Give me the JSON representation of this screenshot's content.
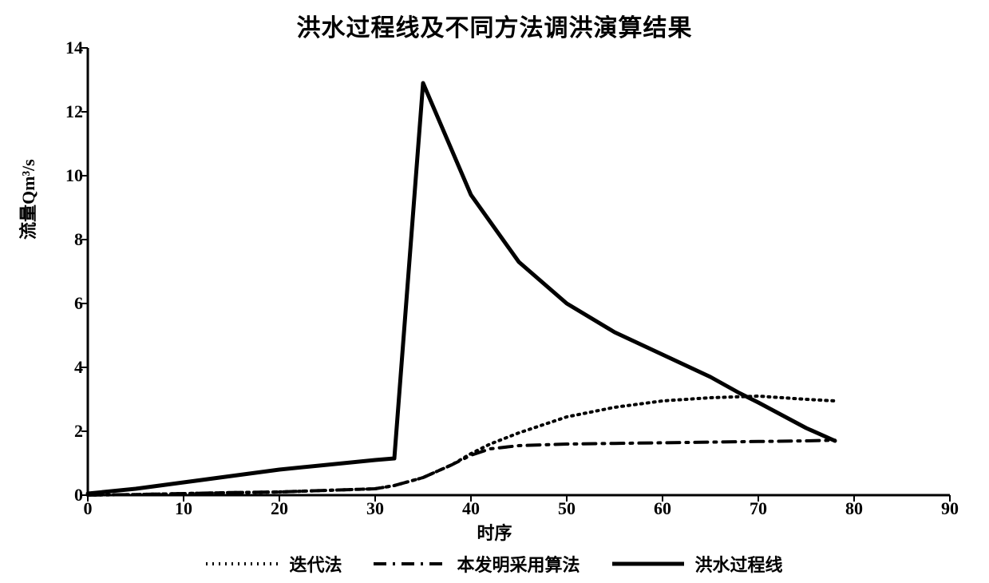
{
  "chart": {
    "type": "line",
    "title": "洪水过程线及不同方法调洪演算结果",
    "title_fontsize": 30,
    "x_axis_label": "时序",
    "y_axis_label": "流量Qm³/s",
    "label_fontsize": 22,
    "tick_fontsize": 22,
    "background_color": "#ffffff",
    "axis_color": "#000000",
    "axis_width": 3,
    "tick_length": 8,
    "xlim": [
      0,
      90
    ],
    "ylim": [
      0,
      14
    ],
    "xticks": [
      0,
      10,
      20,
      30,
      40,
      50,
      60,
      70,
      80,
      90
    ],
    "yticks": [
      0,
      2,
      4,
      6,
      8,
      10,
      12,
      14
    ],
    "series": [
      {
        "name": "迭代法",
        "legend_label": "迭代法",
        "style": "dotted",
        "color": "#000000",
        "line_width": 4,
        "dash": "2,6",
        "x": [
          0,
          5,
          10,
          15,
          20,
          25,
          30,
          32,
          35,
          38,
          40,
          42,
          45,
          48,
          50,
          55,
          60,
          65,
          70,
          75,
          78
        ],
        "y": [
          0,
          0.02,
          0.05,
          0.08,
          0.1,
          0.15,
          0.2,
          0.3,
          0.55,
          0.95,
          1.3,
          1.6,
          1.95,
          2.25,
          2.45,
          2.75,
          2.95,
          3.05,
          3.1,
          3.0,
          2.95
        ]
      },
      {
        "name": "本发明采用算法",
        "legend_label": "本发明采用算法",
        "style": "dash-dot",
        "color": "#000000",
        "line_width": 4,
        "dash": "16,8,3,8",
        "x": [
          0,
          5,
          10,
          15,
          20,
          25,
          30,
          32,
          35,
          38,
          40,
          42,
          45,
          50,
          55,
          60,
          65,
          70,
          75,
          78
        ],
        "y": [
          0,
          0.02,
          0.05,
          0.08,
          0.1,
          0.15,
          0.2,
          0.3,
          0.55,
          0.95,
          1.25,
          1.45,
          1.55,
          1.6,
          1.62,
          1.64,
          1.66,
          1.68,
          1.7,
          1.72
        ]
      },
      {
        "name": "洪水过程线",
        "legend_label": "洪水过程线",
        "style": "solid",
        "color": "#000000",
        "line_width": 5,
        "dash": "",
        "x": [
          0,
          5,
          10,
          15,
          20,
          25,
          30,
          32,
          35,
          40,
          45,
          50,
          55,
          60,
          65,
          68,
          70,
          75,
          78
        ],
        "y": [
          0.05,
          0.2,
          0.4,
          0.6,
          0.8,
          0.95,
          1.1,
          1.15,
          12.9,
          9.4,
          7.3,
          6.0,
          5.1,
          4.4,
          3.7,
          3.2,
          2.9,
          2.1,
          1.7
        ]
      }
    ],
    "legend_position": "bottom-center"
  }
}
